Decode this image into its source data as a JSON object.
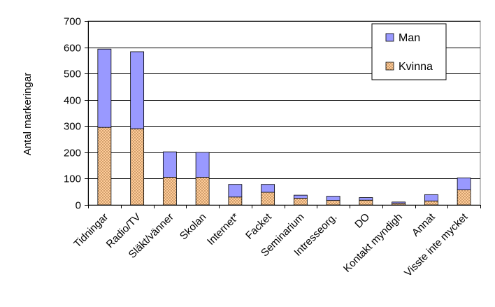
{
  "chart_data": {
    "type": "bar",
    "stacked": true,
    "ylabel": "Antal markeringar",
    "xlabel": "",
    "ylim": [
      0,
      700
    ],
    "yticks": [
      0,
      100,
      200,
      300,
      400,
      500,
      600,
      700
    ],
    "grid": "horizontal",
    "legend_position": "top-right",
    "categories": [
      "Tidningar",
      "Radio/TV",
      "Släkt/vänner",
      "Skolan",
      "Internet*",
      "Facket",
      "Seminarium",
      "Intresseorg.",
      "DO",
      "Kontakt myndigh",
      "Annat",
      "Visste inte mycket"
    ],
    "series": [
      {
        "name": "Kvinna",
        "color": "#FFCC99",
        "pattern": "dotted",
        "values": [
          295,
          290,
          105,
          105,
          30,
          48,
          25,
          17,
          18,
          6,
          15,
          57
        ]
      },
      {
        "name": "Man",
        "color": "#9999FF",
        "pattern": "solid",
        "values": [
          298,
          293,
          97,
          95,
          48,
          30,
          12,
          16,
          10,
          5,
          24,
          46
        ]
      }
    ],
    "legend_order": [
      "Man",
      "Kvinna"
    ]
  }
}
